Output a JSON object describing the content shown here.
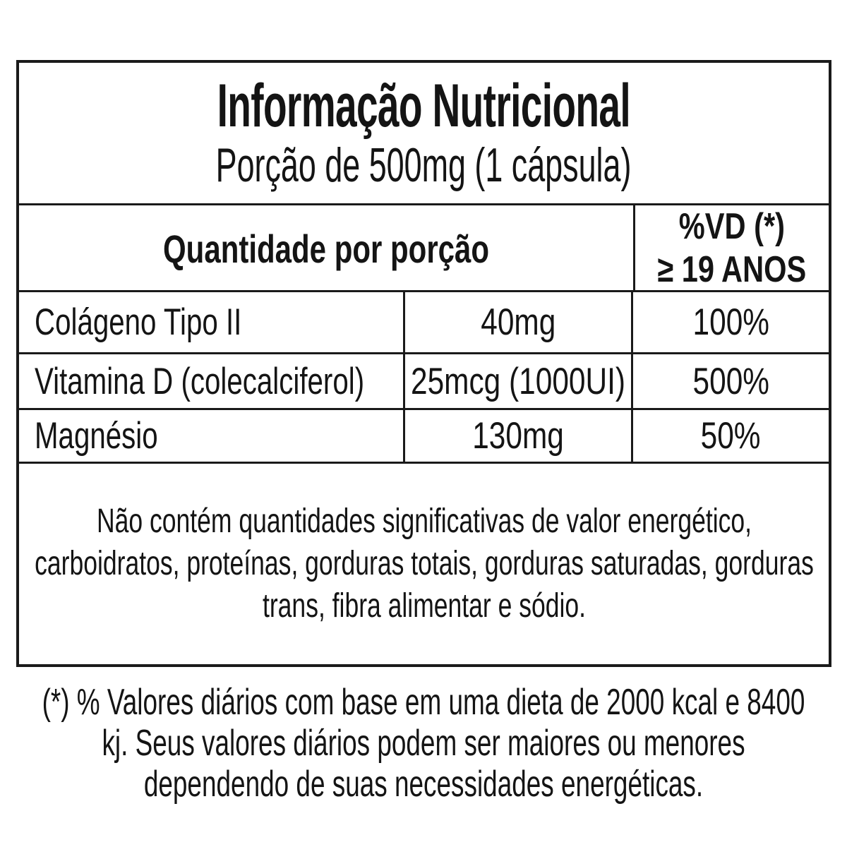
{
  "label": {
    "title": "Informação Nutricional",
    "serving": "Porção de 500mg (1 cápsula)",
    "header": {
      "quantity_column": "Quantidade por porção",
      "dv_column_line1": "%VD (*)",
      "dv_column_line2": "≥ 19 ANOS"
    },
    "rows": [
      {
        "nutrient": "Colágeno Tipo II",
        "amount": "40mg",
        "dv": "100%"
      },
      {
        "nutrient": "Vitamina D (colecalciferol)",
        "amount": "25mcg (1000UI)",
        "dv": "500%"
      },
      {
        "nutrient": "Magnésio",
        "amount": "130mg",
        "dv": "50%"
      }
    ],
    "note": "Não contém quantidades significativas de valor energético, carboidratos, proteínas, gorduras totais, gorduras saturadas, gorduras trans, fibra alimentar e sódio.",
    "footnote": "(*) % Valores diários com base em uma dieta de 2000 kcal e 8400 kj. Seus valores diários podem ser maiores ou menores dependendo de suas necessidades energéticas."
  },
  "colors": {
    "background": "#ffffff",
    "text": "#141414",
    "border": "#1a1a1a"
  }
}
